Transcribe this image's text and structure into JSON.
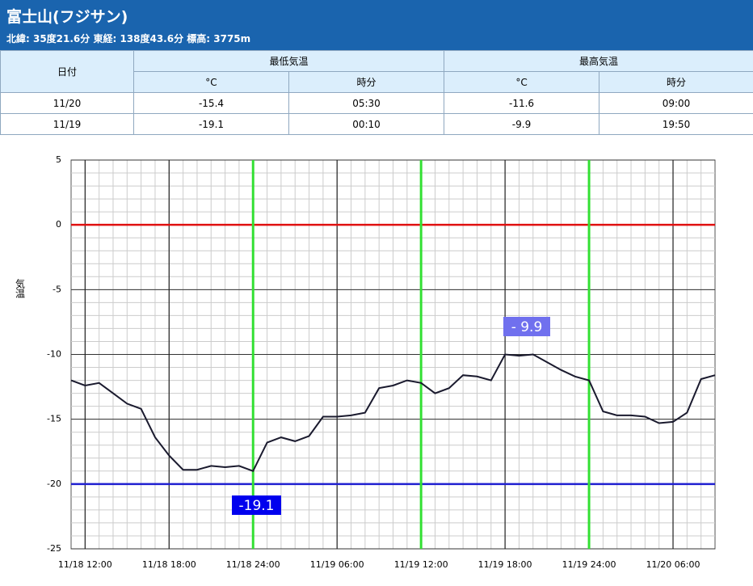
{
  "header": {
    "title": "富士山(フジサン)",
    "subtitle": "北緯: 35度21.6分 東経: 138度43.6分 標高: 3775m"
  },
  "table": {
    "head": {
      "date": "日付",
      "min": "最低気温",
      "max": "最高気温",
      "min_unit": "°C",
      "min_time": "時分",
      "max_unit": "°C",
      "max_time": "時分"
    },
    "rows": [
      [
        "11/20",
        "-15.4",
        "05:30",
        "-11.6",
        "09:00"
      ],
      [
        "11/19",
        "-19.1",
        "00:10",
        "-9.9",
        "19:50"
      ]
    ]
  },
  "chart_data": {
    "type": "line",
    "ylabel": "気温",
    "color": "#1a1a2e",
    "x": [
      "11/18 11:00",
      "11/18 12:00",
      "11/18 13:00",
      "11/18 14:00",
      "11/18 15:00",
      "11/18 16:00",
      "11/18 17:00",
      "11/18 18:00",
      "11/18 19:00",
      "11/18 20:00",
      "11/18 21:00",
      "11/18 22:00",
      "11/18 23:00",
      "11/19 00:00",
      "11/19 01:00",
      "11/19 02:00",
      "11/19 03:00",
      "11/19 04:00",
      "11/19 05:00",
      "11/19 06:00",
      "11/19 07:00",
      "11/19 08:00",
      "11/19 09:00",
      "11/19 10:00",
      "11/19 11:00",
      "11/19 12:00",
      "11/19 13:00",
      "11/19 14:00",
      "11/19 15:00",
      "11/19 16:00",
      "11/19 17:00",
      "11/19 18:00",
      "11/19 19:00",
      "11/19 20:00",
      "11/19 21:00",
      "11/19 22:00",
      "11/19 23:00",
      "11/20 00:00",
      "11/20 01:00",
      "11/20 02:00",
      "11/20 03:00",
      "11/20 04:00",
      "11/20 05:00",
      "11/20 06:00",
      "11/20 07:00",
      "11/20 08:00",
      "11/20 09:00"
    ],
    "values": [
      -12.0,
      -12.4,
      -12.2,
      -13.0,
      -13.8,
      -14.2,
      -16.4,
      -17.8,
      -18.9,
      -18.9,
      -18.6,
      -18.7,
      -18.6,
      -19.0,
      -16.8,
      -16.4,
      -16.7,
      -16.3,
      -14.8,
      -14.8,
      -14.7,
      -14.5,
      -12.6,
      -12.4,
      -12.0,
      -12.2,
      -13.0,
      -12.6,
      -11.6,
      -11.7,
      -12.0,
      -10.0,
      -10.1,
      -10.0,
      -10.6,
      -11.2,
      -11.7,
      -12.0,
      -14.4,
      -14.7,
      -14.7,
      -14.8,
      -15.3,
      -15.2,
      -14.5,
      -11.9,
      -11.6
    ],
    "xlim": [
      "11/18 11:00",
      "11/20 09:00"
    ],
    "xticks": [
      "11/18 12:00",
      "11/18 18:00",
      "11/18 24:00",
      "11/19 06:00",
      "11/19 12:00",
      "11/19 18:00",
      "11/19 24:00",
      "11/20 06:00"
    ],
    "ylim": [
      -25,
      5
    ],
    "yticks": [
      5,
      0,
      -5,
      -10,
      -15,
      -20,
      -25
    ],
    "grid": true,
    "minor_grid": true,
    "hlines": [
      {
        "value": 0,
        "color": "#e01010"
      },
      {
        "value": -20,
        "color": "#2020d0"
      }
    ],
    "vlines": [
      {
        "x": "11/18 24:00",
        "color": "#33e033"
      },
      {
        "x": "11/19 12:00",
        "color": "#33e033"
      },
      {
        "x": "11/19 24:00",
        "color": "#33e033"
      }
    ],
    "annotations": [
      "- 9.9",
      "-19.1"
    ]
  }
}
